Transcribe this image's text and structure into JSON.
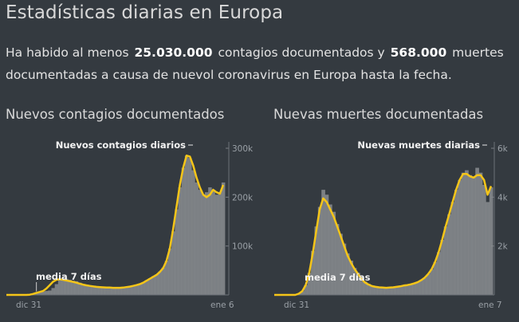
{
  "title": "Estadísticas diarias en Europa",
  "intro": {
    "p1": "Ha habido al menos ",
    "cases": "25.030.000",
    "p2": " contagios documentados y ",
    "deaths": "568.000",
    "p3": " muertes documentadas a causa de nuevol coronavirus en Europa hasta la fecha."
  },
  "colors": {
    "avg_line": "#f5c518",
    "bars": "#8a8d91",
    "background": "#343a40"
  },
  "chart_data": [
    {
      "type": "area",
      "title": "Nuevos contagios documentados",
      "x_tick_labels": [
        "dic 31",
        "ene 6"
      ],
      "y_tick_labels": [
        "100k",
        "200k",
        "300k"
      ],
      "y_ticks": [
        100000,
        200000,
        300000
      ],
      "ylim": [
        0,
        300000
      ],
      "series": [
        {
          "name": "Nuevos contagios diarios",
          "role": "daily",
          "values": [
            0,
            0,
            0,
            0,
            0,
            0,
            500,
            1500,
            3000,
            5000,
            6000,
            7000,
            8000,
            9000,
            14000,
            22000,
            32000,
            34000,
            33000,
            31000,
            29000,
            28000,
            25000,
            22000,
            21000,
            19000,
            18000,
            17000,
            16000,
            15000,
            15000,
            14500,
            14000,
            14000,
            14500,
            15000,
            16000,
            17000,
            18000,
            20000,
            22000,
            26000,
            30000,
            34000,
            38000,
            42000,
            48000,
            56000,
            70000,
            95000,
            130000,
            175000,
            220000,
            260000,
            285000,
            280000,
            255000,
            230000,
            215000,
            205000,
            210000,
            220000,
            215000,
            205000,
            210000,
            230000
          ]
        },
        {
          "name": "media 7 días",
          "role": "avg",
          "values": [
            0,
            0,
            0,
            0,
            0,
            0,
            0,
            500,
            2000,
            4000,
            6000,
            8000,
            13000,
            20000,
            27000,
            31000,
            32000,
            31000,
            29500,
            28000,
            26500,
            25000,
            23000,
            21000,
            19500,
            18500,
            17500,
            16500,
            16000,
            15500,
            15000,
            15000,
            14500,
            14500,
            14500,
            15000,
            16000,
            17000,
            18500,
            20000,
            22000,
            25000,
            29000,
            33000,
            37000,
            41000,
            47000,
            55000,
            70000,
            95000,
            135000,
            180000,
            225000,
            260000,
            285000,
            283000,
            265000,
            240000,
            220000,
            205000,
            200000,
            205000,
            215000,
            210000,
            207000,
            225000
          ]
        }
      ]
    },
    {
      "type": "area",
      "title": "Nuevas muertes documentadas",
      "x_tick_labels": [
        "dic 31",
        "ene 7"
      ],
      "y_tick_labels": [
        "2k",
        "4k",
        "6k"
      ],
      "y_ticks": [
        2000,
        4000,
        6000
      ],
      "ylim": [
        0,
        6000
      ],
      "series": [
        {
          "name": "Nuevas muertes diarias",
          "role": "daily",
          "values": [
            0,
            0,
            0,
            0,
            0,
            0,
            0,
            50,
            150,
            400,
            900,
            1800,
            2800,
            3600,
            4300,
            4100,
            3700,
            3400,
            2900,
            2500,
            2100,
            1700,
            1400,
            1100,
            900,
            700,
            550,
            450,
            380,
            340,
            320,
            300,
            290,
            300,
            310,
            330,
            350,
            380,
            400,
            430,
            470,
            520,
            600,
            700,
            850,
            1050,
            1350,
            1750,
            2250,
            2800,
            3300,
            3800,
            4300,
            4700,
            5000,
            5100,
            4900,
            4800,
            5200,
            5000,
            4500,
            3800,
            4400
          ]
        },
        {
          "name": "media 7 días",
          "role": "avg",
          "values": [
            0,
            0,
            0,
            0,
            0,
            0,
            0,
            50,
            150,
            400,
            900,
            1700,
            2600,
            3500,
            3950,
            3800,
            3500,
            3200,
            2800,
            2400,
            2000,
            1600,
            1300,
            1050,
            850,
            650,
            500,
            420,
            360,
            330,
            310,
            300,
            290,
            300,
            310,
            330,
            350,
            380,
            400,
            430,
            470,
            520,
            600,
            700,
            850,
            1050,
            1350,
            1750,
            2250,
            2800,
            3300,
            3800,
            4300,
            4700,
            4950,
            4950,
            4850,
            4800,
            4900,
            4900,
            4700,
            4100,
            4450
          ]
        }
      ]
    }
  ]
}
